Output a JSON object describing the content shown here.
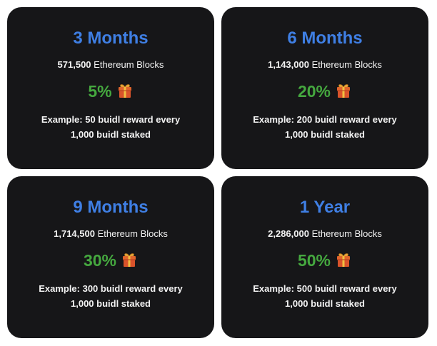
{
  "colors": {
    "card_background": "#161618",
    "period_text": "#3f7fe4",
    "rate_text": "#45a83f"
  },
  "cards": [
    {
      "period": "3 Months",
      "blocks_number": "571,500",
      "blocks_label": "Ethereum Blocks",
      "rate": "5%",
      "icon": "gift-icon",
      "example_line1": "Example: 50 buidl reward every",
      "example_line2": "1,000 buidl staked"
    },
    {
      "period": "6 Months",
      "blocks_number": "1,143,000",
      "blocks_label": "Ethereum Blocks",
      "rate": "20%",
      "icon": "gift-icon",
      "example_line1": "Example: 200 buidl reward every",
      "example_line2": "1,000 buidl staked"
    },
    {
      "period": "9 Months",
      "blocks_number": "1,714,500",
      "blocks_label": "Ethereum Blocks",
      "rate": "30%",
      "icon": "gift-icon",
      "example_line1": "Example: 300 buidl reward every",
      "example_line2": "1,000 buidl staked"
    },
    {
      "period": "1 Year",
      "blocks_number": "2,286,000",
      "blocks_label": "Ethereum Blocks",
      "rate": "50%",
      "icon": "gift-icon",
      "example_line1": "Example: 500 buidl reward every",
      "example_line2": "1,000 buidl staked"
    }
  ]
}
